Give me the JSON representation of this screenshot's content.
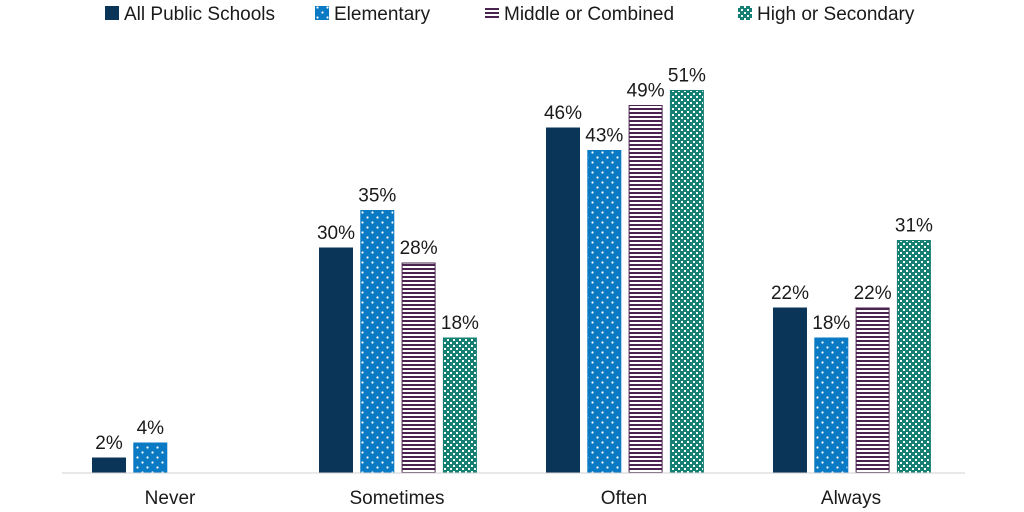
{
  "chart_data": {
    "type": "bar",
    "categories": [
      "Never",
      "Sometimes",
      "Often",
      "Always"
    ],
    "series": [
      {
        "name": "All Public Schools",
        "values": [
          2,
          30,
          46,
          22
        ],
        "labels": [
          "2%",
          "30%",
          "46%",
          "22%"
        ],
        "color": "#0b3558",
        "pattern": "solid"
      },
      {
        "name": "Elementary",
        "values": [
          4,
          35,
          43,
          18
        ],
        "labels": [
          "4%",
          "35%",
          "43%",
          "18%"
        ],
        "color": "#0a7ac4",
        "pattern": "dots"
      },
      {
        "name": "Middle or Combined",
        "values": [
          null,
          28,
          49,
          22
        ],
        "labels": [
          null,
          "28%",
          "49%",
          "22%"
        ],
        "color": "#4a2350",
        "pattern": "horizontal-stripes"
      },
      {
        "name": "High or Secondary",
        "values": [
          null,
          18,
          51,
          31
        ],
        "labels": [
          null,
          "18%",
          "51%",
          "31%"
        ],
        "color": "#147f73",
        "pattern": "checker"
      }
    ],
    "ylim": [
      0,
      55
    ],
    "grid": false,
    "legend": "top"
  }
}
